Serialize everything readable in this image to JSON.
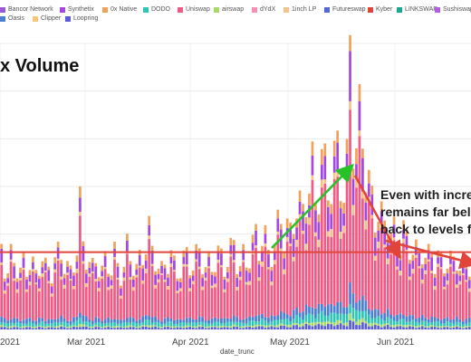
{
  "title": "x Volume",
  "annotation": [
    "Even with incre",
    "remains far bel",
    "back to levels f"
  ],
  "legend": [
    {
      "label": "Bancor Network",
      "color": "#9b59d6"
    },
    {
      "label": "Synthetix",
      "color": "#a347e0"
    },
    {
      "label": "0x Native",
      "color": "#f2a05a"
    },
    {
      "label": "DODO",
      "color": "#2ec4b6"
    },
    {
      "label": "Uniswap",
      "color": "#f05a84"
    },
    {
      "label": "airswap",
      "color": "#a8d86a"
    },
    {
      "label": "dYdX",
      "color": "#f58fb5"
    },
    {
      "label": "1inch LP",
      "color": "#f5c28a"
    },
    {
      "label": "Futureswap",
      "color": "#5566d6"
    },
    {
      "label": "Kyber",
      "color": "#e0443a"
    },
    {
      "label": "LINKSWAP",
      "color": "#18a98e"
    },
    {
      "label": "SushiswapV",
      "color": "#b15de3"
    },
    {
      "label": "Oasis",
      "color": "#4a7fd1"
    },
    {
      "label": "Clipper",
      "color": "#f6c77a"
    },
    {
      "label": "Loopring",
      "color": "#5a5bd8"
    }
  ],
  "chart_data": {
    "type": "bar",
    "stacked": true,
    "xlabel": "date_trunc",
    "x_ticks": [
      "2021",
      "Mar 2021",
      "Apr 2021",
      "May 2021",
      "Jun 2021"
    ],
    "grid": true,
    "baseline_level_fraction": 0.27,
    "approx_daily_totals_fraction_of_peak": [
      0.28,
      0.22,
      0.2,
      0.25,
      0.24,
      0.22,
      0.2,
      0.23,
      0.21,
      0.24,
      0.22,
      0.19,
      0.23,
      0.25,
      0.21,
      0.22,
      0.2,
      0.24,
      0.26,
      0.27,
      0.23,
      0.21,
      0.2,
      0.24,
      0.28,
      0.42,
      0.3,
      0.26,
      0.23,
      0.21,
      0.25,
      0.22,
      0.2,
      0.24,
      0.23,
      0.21,
      0.26,
      0.22,
      0.19,
      0.22,
      0.28,
      0.25,
      0.23,
      0.21,
      0.24,
      0.26,
      0.3,
      0.34,
      0.27,
      0.25,
      0.22,
      0.2,
      0.23,
      0.24,
      0.26,
      0.22,
      0.2,
      0.21,
      0.24,
      0.26,
      0.23,
      0.22,
      0.25,
      0.28,
      0.24,
      0.21,
      0.23,
      0.22,
      0.24,
      0.26,
      0.25,
      0.22,
      0.24,
      0.27,
      0.3,
      0.24,
      0.22,
      0.25,
      0.23,
      0.26,
      0.3,
      0.32,
      0.28,
      0.33,
      0.31,
      0.26,
      0.27,
      0.3,
      0.35,
      0.38,
      0.33,
      0.36,
      0.32,
      0.38,
      0.45,
      0.42,
      0.4,
      0.48,
      0.5,
      0.55,
      0.44,
      0.5,
      0.6,
      0.55,
      0.5,
      0.52,
      0.58,
      0.62,
      0.54,
      0.48,
      0.56,
      1.0,
      0.7,
      0.62,
      0.72,
      0.68,
      0.58,
      0.5,
      0.44,
      0.4,
      0.42,
      0.38,
      0.36,
      0.4,
      0.34,
      0.33,
      0.3,
      0.32,
      0.35,
      0.3,
      0.28,
      0.3,
      0.27,
      0.26,
      0.28,
      0.26,
      0.25,
      0.27,
      0.24,
      0.26,
      0.23,
      0.22,
      0.25,
      0.24,
      0.23,
      0.25,
      0.22,
      0.2,
      0.22,
      0.23
    ],
    "series_share_of_total": {
      "Uniswap": 0.6,
      "Synthetix": 0.13,
      "0x Native": 0.07,
      "Oasis": 0.06,
      "DODO": 0.05,
      "1inch LP": 0.04,
      "Loopring": 0.03,
      "airswap": 0.02
    },
    "annotations": {
      "baseline_line_color": "#e0443a",
      "rise_arrow_color": "#27c227",
      "fall_arrow_color": "#e0443a"
    }
  }
}
